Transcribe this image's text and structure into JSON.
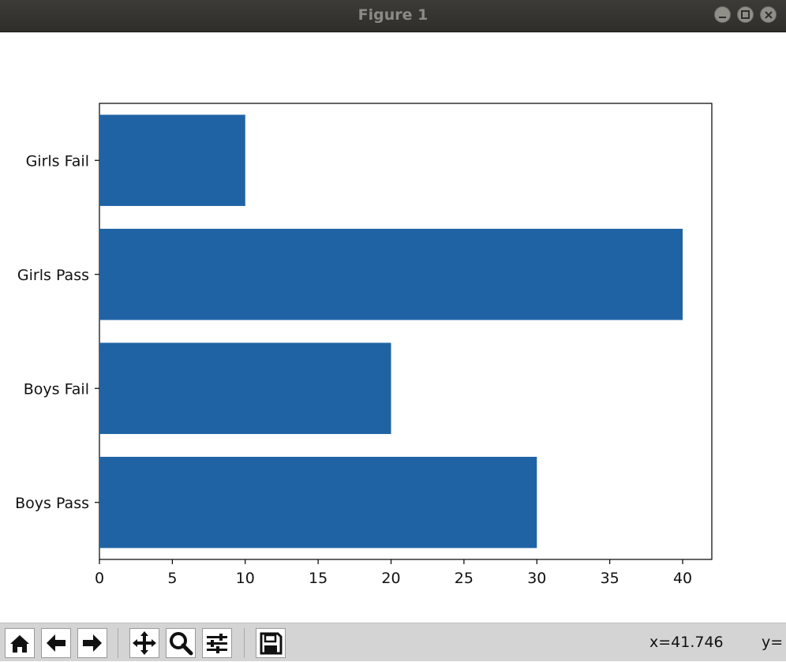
{
  "window": {
    "title": "Figure 1"
  },
  "colors": {
    "bar": "#1f63a4",
    "titlebar": "#35342f",
    "toolbar": "#d4d4d4"
  },
  "chart_data": {
    "type": "bar",
    "orientation": "horizontal",
    "categories": [
      "Boys Pass",
      "Boys Fail",
      "Girls Pass",
      "Girls Fail"
    ],
    "values": [
      30,
      20,
      40,
      10
    ],
    "xticks": [
      "0",
      "5",
      "10",
      "15",
      "20",
      "25",
      "30",
      "35",
      "40"
    ],
    "xlim": [
      0,
      42
    ],
    "grid": false
  },
  "toolbar": {
    "tools": [
      "home-icon",
      "back-arrow-icon",
      "forward-arrow-icon",
      "pan-icon",
      "zoom-icon",
      "configure-subplots-icon",
      "save-icon"
    ],
    "x_readout": "x=41.746",
    "y_readout": "y="
  }
}
